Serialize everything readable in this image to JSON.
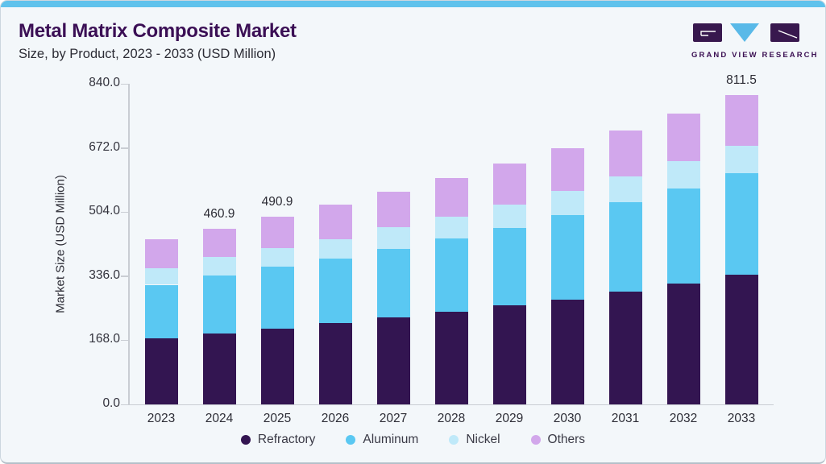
{
  "header": {
    "title": "Metal Matrix Composite Market",
    "subtitle": "Size, by Product, 2023 - 2033 (USD Million)"
  },
  "logo": {
    "text": "GRAND VIEW RESEARCH"
  },
  "colors": {
    "top_strip": "#5fc2ec",
    "card_background": "#f3f7fa",
    "title_text": "#3b0f55",
    "body_text": "#2c2c35",
    "axis_line": "#c9cdd3",
    "logo_purple": "#38184e",
    "logo_blue": "#59b9e8",
    "refractory": "#331551",
    "aluminum": "#5ac8f2",
    "nickel": "#bfe9f9",
    "others": "#d2a7eb"
  },
  "chart_data": {
    "type": "bar",
    "stacked": true,
    "title": "Metal Matrix Composite Market Size, by Product, 2023 - 2033 (USD Million)",
    "xlabel": "",
    "ylabel": "Market Size (USD Million)",
    "ylim": [
      0,
      840
    ],
    "yticks": [
      0,
      168,
      336,
      504,
      672,
      840
    ],
    "ytick_labels": [
      "0.0",
      "168.0",
      "336.0",
      "504.0",
      "672.0",
      "840.0"
    ],
    "grid": false,
    "legend_position": "bottom",
    "categories": [
      "2023",
      "2024",
      "2025",
      "2026",
      "2027",
      "2028",
      "2029",
      "2030",
      "2031",
      "2032",
      "2033"
    ],
    "series": [
      {
        "name": "Refractory",
        "color": "#331551",
        "values": [
          173.9,
          185.2,
          199.0,
          212.5,
          227.6,
          242.6,
          259.8,
          274.8,
          296.3,
          315.6,
          339.2
        ]
      },
      {
        "name": "Aluminum",
        "color": "#5ac8f2",
        "values": [
          139.5,
          152.9,
          162.2,
          169.6,
          180.3,
          193.2,
          201.8,
          221.1,
          234.0,
          249.0,
          266.2
        ]
      },
      {
        "name": "Nickel",
        "color": "#bfe9f9",
        "values": [
          42.9,
          47.4,
          47.6,
          51.5,
          55.8,
          55.8,
          62.3,
          64.4,
          66.6,
          73.0,
          73.0
        ]
      },
      {
        "name": "Others",
        "color": "#d2a7eb",
        "values": [
          77.3,
          75.4,
          82.1,
          90.2,
          94.5,
          100.9,
          107.3,
          111.6,
          120.2,
          124.5,
          133.1
        ]
      }
    ],
    "totals_estimated": [
      433.6,
      460.9,
      490.9,
      523.8,
      558.2,
      592.5,
      631.2,
      671.9,
      717.1,
      762.1,
      811.5
    ],
    "total_labels": [
      "",
      "460.9",
      "490.9",
      "",
      "",
      "",
      "",
      "",
      "",
      "",
      "811.5"
    ]
  }
}
